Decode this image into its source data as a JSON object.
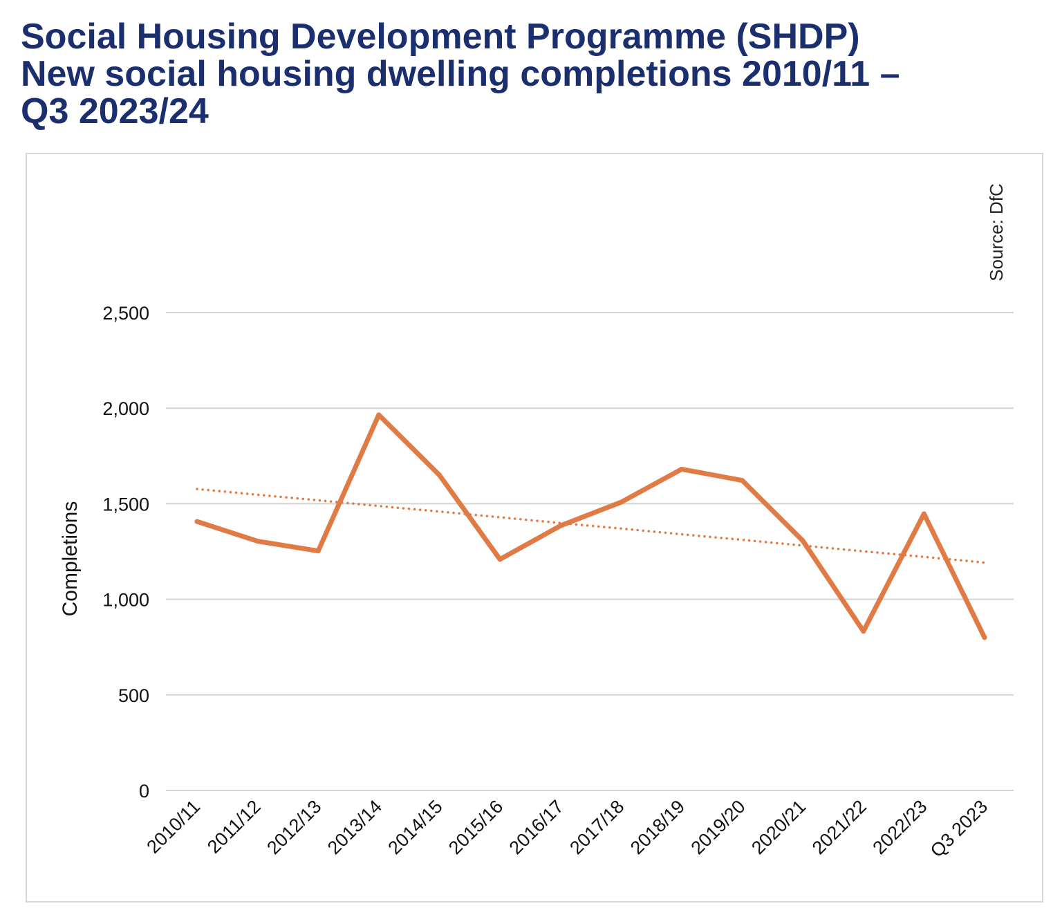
{
  "chart_data": {
    "type": "line",
    "title_lines": [
      "Social Housing Development Programme (SHDP)",
      "New social housing dwelling completions 2010/11 –",
      "Q3 2023/24"
    ],
    "xlabel": "",
    "ylabel": "Completions",
    "source": "Source: DfC",
    "categories": [
      "2010/11",
      "2011/12",
      "2012/13",
      "2013/14",
      "2014/15",
      "2015/16",
      "2016/17",
      "2017/18",
      "2018/19",
      "2019/20",
      "2020/21",
      "2021/22",
      "2022/23",
      "Q3 2023"
    ],
    "series": [
      {
        "values": [
          1407,
          1304,
          1253,
          1965,
          1650,
          1209,
          1385,
          1508,
          1681,
          1622,
          1306,
          833,
          1447,
          800
        ],
        "color": "#e07b45",
        "style": "solid"
      },
      {
        "values": [
          1577,
          1547,
          1518,
          1488,
          1459,
          1429,
          1399,
          1370,
          1340,
          1311,
          1281,
          1251,
          1222,
          1192
        ],
        "color": "#e07b45",
        "style": "dotted",
        "trendline": true
      }
    ],
    "yticks": [
      0,
      500,
      1000,
      1500,
      2000,
      2500
    ],
    "ytick_labels": [
      "0",
      "500",
      "1,000",
      "1,500",
      "2,000",
      "2,500"
    ],
    "ylim": [
      0,
      2500
    ],
    "grid": true,
    "legend": "none"
  }
}
